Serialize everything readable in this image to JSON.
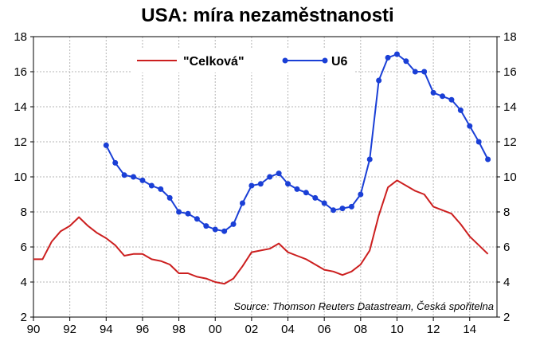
{
  "chart_data": {
    "type": "line",
    "title": "USA: míra nezaměstnanosti",
    "source": "Source: Thomson Reuters Datastream, Česká spořitelna",
    "xlabel": "",
    "ylabel": "",
    "xlim": [
      1990,
      2015.5
    ],
    "ylim": [
      2,
      18
    ],
    "x_ticks": [
      1990,
      1992,
      1994,
      1996,
      1998,
      2000,
      2002,
      2004,
      2006,
      2008,
      2010,
      2012,
      2014
    ],
    "x_tick_labels": [
      "90",
      "92",
      "94",
      "96",
      "98",
      "00",
      "02",
      "04",
      "06",
      "08",
      "10",
      "12",
      "14"
    ],
    "y_ticks": [
      2,
      4,
      6,
      8,
      10,
      12,
      14,
      16,
      18
    ],
    "y_tick_labels": [
      "2",
      "4",
      "6",
      "8",
      "10",
      "12",
      "14",
      "16",
      "18"
    ],
    "grid": true,
    "legend": "top-center",
    "series": [
      {
        "name": "\"Celková\"",
        "color": "#cc1f1f",
        "marker": "none",
        "x": [
          1990.0,
          1990.5,
          1991.0,
          1991.5,
          1992.0,
          1992.5,
          1993.0,
          1993.5,
          1994.0,
          1994.5,
          1995.0,
          1995.5,
          1996.0,
          1996.5,
          1997.0,
          1997.5,
          1998.0,
          1998.5,
          1999.0,
          1999.5,
          2000.0,
          2000.5,
          2001.0,
          2001.5,
          2002.0,
          2002.5,
          2003.0,
          2003.5,
          2004.0,
          2004.5,
          2005.0,
          2005.5,
          2006.0,
          2006.5,
          2007.0,
          2007.5,
          2008.0,
          2008.5,
          2009.0,
          2009.5,
          2010.0,
          2010.5,
          2011.0,
          2011.5,
          2012.0,
          2012.5,
          2013.0,
          2013.5,
          2014.0,
          2014.5,
          2015.0
        ],
        "values": [
          5.3,
          5.3,
          6.3,
          6.9,
          7.2,
          7.7,
          7.2,
          6.8,
          6.5,
          6.1,
          5.5,
          5.6,
          5.6,
          5.3,
          5.2,
          5.0,
          4.5,
          4.5,
          4.3,
          4.2,
          4.0,
          3.9,
          4.2,
          4.9,
          5.7,
          5.8,
          5.9,
          6.2,
          5.7,
          5.5,
          5.3,
          5.0,
          4.7,
          4.6,
          4.4,
          4.6,
          5.0,
          5.8,
          7.8,
          9.4,
          9.8,
          9.5,
          9.2,
          9.0,
          8.3,
          8.1,
          7.9,
          7.3,
          6.6,
          6.1,
          5.6
        ]
      },
      {
        "name": "U6",
        "color": "#1a3fd6",
        "marker": "circle",
        "x": [
          1994.0,
          1994.5,
          1995.0,
          1995.5,
          1996.0,
          1996.5,
          1997.0,
          1997.5,
          1998.0,
          1998.5,
          1999.0,
          1999.5,
          2000.0,
          2000.5,
          2001.0,
          2001.5,
          2002.0,
          2002.5,
          2003.0,
          2003.5,
          2004.0,
          2004.5,
          2005.0,
          2005.5,
          2006.0,
          2006.5,
          2007.0,
          2007.5,
          2008.0,
          2008.5,
          2009.0,
          2009.5,
          2010.0,
          2010.5,
          2011.0,
          2011.5,
          2012.0,
          2012.5,
          2013.0,
          2013.5,
          2014.0,
          2014.5,
          2015.0
        ],
        "values": [
          11.8,
          10.8,
          10.1,
          10.0,
          9.8,
          9.5,
          9.3,
          8.8,
          8.0,
          7.9,
          7.6,
          7.2,
          7.0,
          6.9,
          7.3,
          8.5,
          9.5,
          9.6,
          10.0,
          10.2,
          9.6,
          9.3,
          9.1,
          8.8,
          8.5,
          8.1,
          8.2,
          8.3,
          9.0,
          11.0,
          15.5,
          16.8,
          17.0,
          16.6,
          16.0,
          16.0,
          14.8,
          14.6,
          14.4,
          13.8,
          12.9,
          12.0,
          11.0
        ]
      }
    ]
  }
}
